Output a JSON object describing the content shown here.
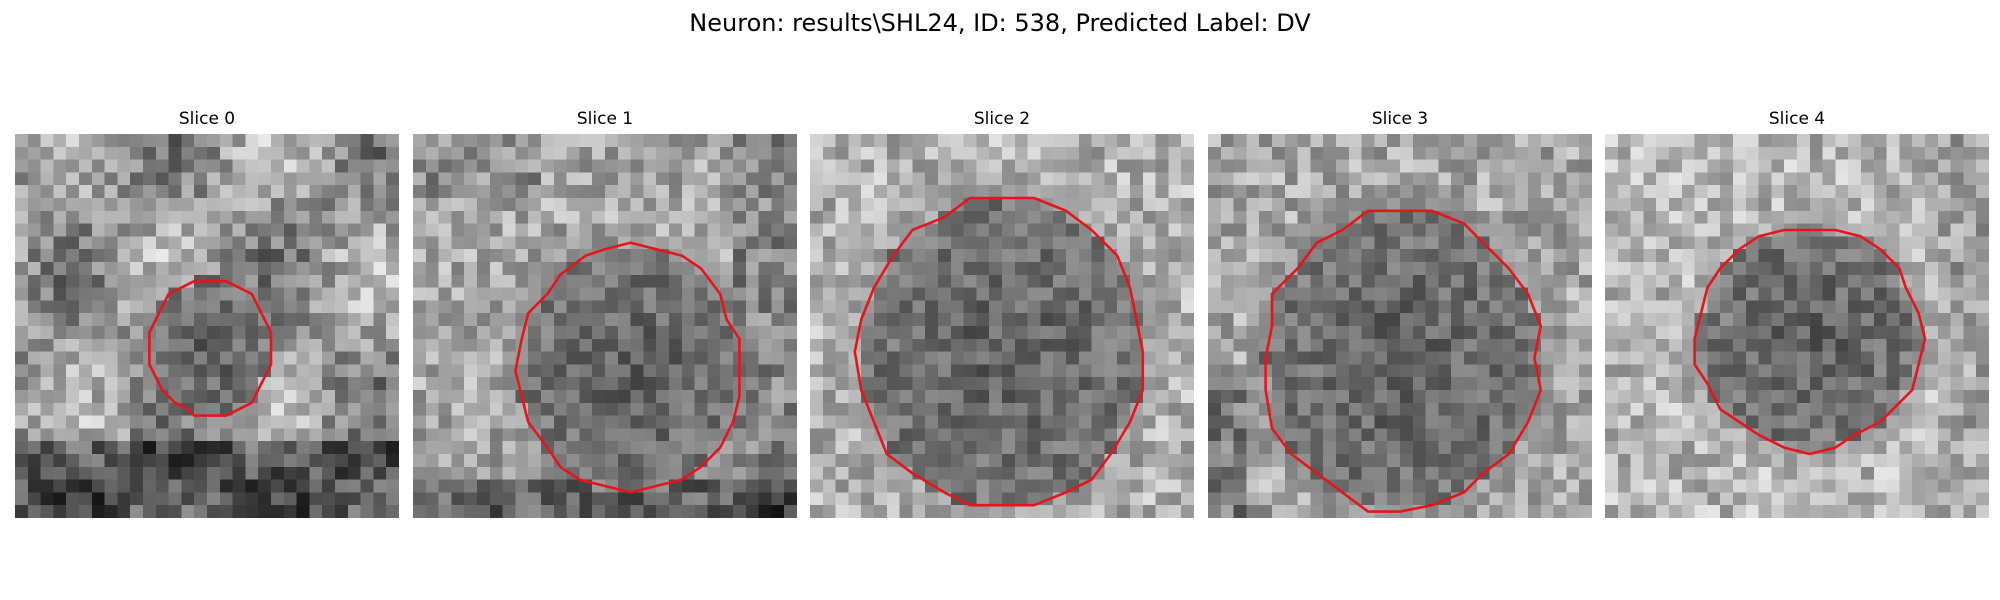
{
  "figure": {
    "title": "Neuron: results\\SHL24, ID: 538, Predicted Label: DV"
  },
  "colors": {
    "contour": "#e8141c",
    "background": "#ffffff"
  },
  "panels": [
    {
      "title": "Slice 0"
    },
    {
      "title": "Slice 1"
    },
    {
      "title": "Slice 2"
    },
    {
      "title": "Slice 3"
    },
    {
      "title": "Slice 4"
    }
  ]
}
